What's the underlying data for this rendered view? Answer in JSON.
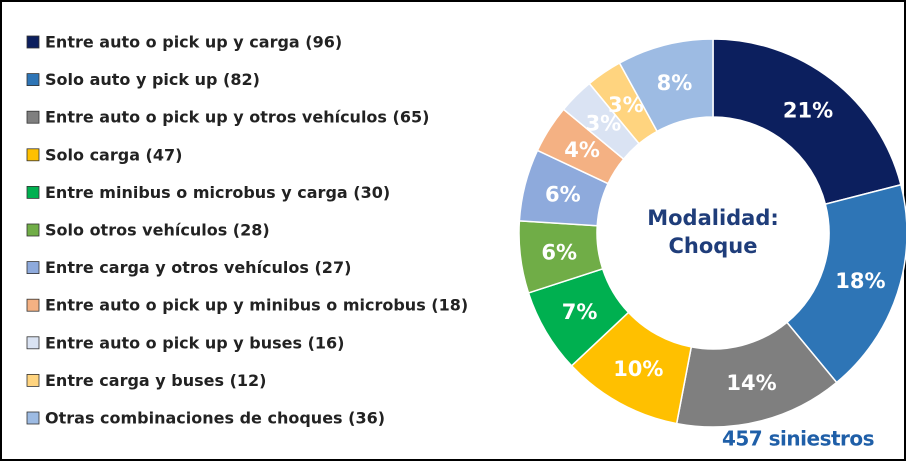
{
  "chart_data": {
    "type": "donut",
    "categories": [
      "Entre auto o pick up y carga (96)",
      "Solo auto y pick up (82)",
      "Entre auto o pick up y otros vehículos (65)",
      "Solo carga (47)",
      "Entre minibus o microbus y carga (30)",
      "Solo otros vehículos (28)",
      "Entre carga y otros vehículos (27)",
      "Entre auto o pick up y minibus o microbus (18)",
      "Entre auto o pick up y buses (16)",
      "Entre carga y buses (12)",
      "Otras combinaciones de choques (36)"
    ],
    "values": [
      21,
      18,
      14,
      10,
      7,
      6,
      6,
      4,
      3,
      3,
      8
    ],
    "value_labels": [
      "21%",
      "18%",
      "14%",
      "10%",
      "7%",
      "6%",
      "6%",
      "4%",
      "3%",
      "3%",
      "8%"
    ],
    "colors": [
      "#0c1f5e",
      "#2e75b6",
      "#7f7f7f",
      "#ffc000",
      "#00b050",
      "#70ad47",
      "#8eaadc",
      "#f4b183",
      "#dae3f3",
      "#ffd47f",
      "#9dbbe3"
    ],
    "center_text": [
      "Modalidad:",
      "Choque"
    ],
    "annotation": "457 siniestros",
    "legend": "left"
  }
}
